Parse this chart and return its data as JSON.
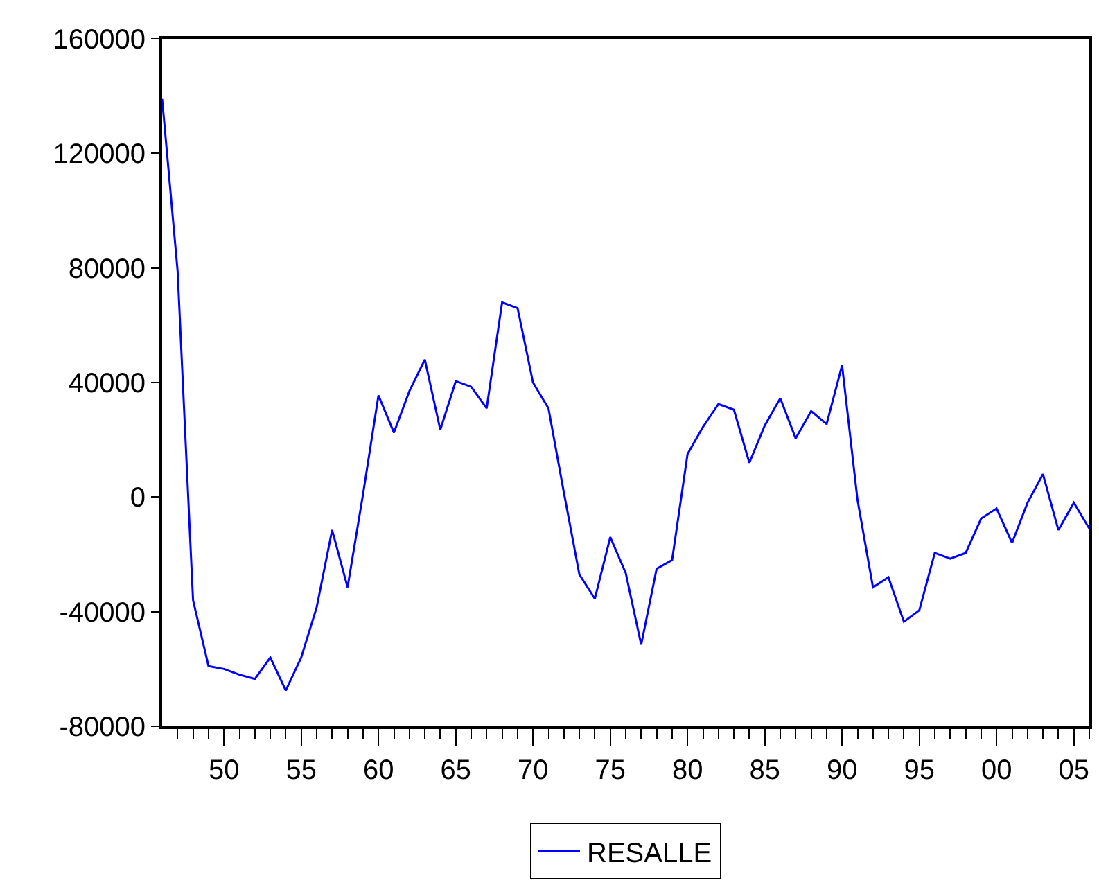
{
  "chart_data": {
    "type": "line",
    "x": [
      1946,
      1947,
      1948,
      1949,
      1950,
      1951,
      1952,
      1953,
      1954,
      1955,
      1956,
      1957,
      1958,
      1959,
      1960,
      1961,
      1962,
      1963,
      1964,
      1965,
      1966,
      1967,
      1968,
      1969,
      1970,
      1971,
      1972,
      1973,
      1974,
      1975,
      1976,
      1977,
      1978,
      1979,
      1980,
      1981,
      1982,
      1983,
      1984,
      1985,
      1986,
      1987,
      1988,
      1989,
      1990,
      1991,
      1992,
      1993,
      1994,
      1995,
      1996,
      1997,
      1998,
      1999,
      2000,
      2001,
      2002,
      2003,
      2004,
      2005,
      2006
    ],
    "series": [
      {
        "name": "RESALLE",
        "color": "#0000ff",
        "values": [
          139000,
          79000,
          -36000,
          -59000,
          -60000,
          -62000,
          -63500,
          -56000,
          -67500,
          -56000,
          -38500,
          -11500,
          -31500,
          1000,
          35500,
          22500,
          37000,
          48000,
          23500,
          40500,
          38500,
          31000,
          68000,
          66000,
          40000,
          31000,
          1500,
          -27000,
          -35500,
          -14000,
          -26500,
          -51500,
          -25000,
          -22000,
          15000,
          24500,
          32500,
          30500,
          12000,
          25000,
          34500,
          20500,
          30000,
          25500,
          46000,
          -1000,
          -31500,
          -28000,
          -43500,
          -39500,
          -19500,
          -21500,
          -19500,
          -7500,
          -4000,
          -16000,
          -2000,
          8000,
          -11500,
          -2000,
          -11000
        ]
      }
    ],
    "xlim": [
      1946,
      2006
    ],
    "xticks": [
      {
        "value": 1947,
        "label": null
      },
      {
        "value": 1948,
        "label": null
      },
      {
        "value": 1949,
        "label": null
      },
      {
        "value": 1950,
        "label": "50"
      },
      {
        "value": 1951,
        "label": null
      },
      {
        "value": 1952,
        "label": null
      },
      {
        "value": 1953,
        "label": null
      },
      {
        "value": 1954,
        "label": null
      },
      {
        "value": 1955,
        "label": "55"
      },
      {
        "value": 1956,
        "label": null
      },
      {
        "value": 1957,
        "label": null
      },
      {
        "value": 1958,
        "label": null
      },
      {
        "value": 1959,
        "label": null
      },
      {
        "value": 1960,
        "label": "60"
      },
      {
        "value": 1961,
        "label": null
      },
      {
        "value": 1962,
        "label": null
      },
      {
        "value": 1963,
        "label": null
      },
      {
        "value": 1964,
        "label": null
      },
      {
        "value": 1965,
        "label": "65"
      },
      {
        "value": 1966,
        "label": null
      },
      {
        "value": 1967,
        "label": null
      },
      {
        "value": 1968,
        "label": null
      },
      {
        "value": 1969,
        "label": null
      },
      {
        "value": 1970,
        "label": "70"
      },
      {
        "value": 1971,
        "label": null
      },
      {
        "value": 1972,
        "label": null
      },
      {
        "value": 1973,
        "label": null
      },
      {
        "value": 1974,
        "label": null
      },
      {
        "value": 1975,
        "label": "75"
      },
      {
        "value": 1976,
        "label": null
      },
      {
        "value": 1977,
        "label": null
      },
      {
        "value": 1978,
        "label": null
      },
      {
        "value": 1979,
        "label": null
      },
      {
        "value": 1980,
        "label": "80"
      },
      {
        "value": 1981,
        "label": null
      },
      {
        "value": 1982,
        "label": null
      },
      {
        "value": 1983,
        "label": null
      },
      {
        "value": 1984,
        "label": null
      },
      {
        "value": 1985,
        "label": "85"
      },
      {
        "value": 1986,
        "label": null
      },
      {
        "value": 1987,
        "label": null
      },
      {
        "value": 1988,
        "label": null
      },
      {
        "value": 1989,
        "label": null
      },
      {
        "value": 1990,
        "label": "90"
      },
      {
        "value": 1991,
        "label": null
      },
      {
        "value": 1992,
        "label": null
      },
      {
        "value": 1993,
        "label": null
      },
      {
        "value": 1994,
        "label": null
      },
      {
        "value": 1995,
        "label": "95"
      },
      {
        "value": 1996,
        "label": null
      },
      {
        "value": 1997,
        "label": null
      },
      {
        "value": 1998,
        "label": null
      },
      {
        "value": 1999,
        "label": null
      },
      {
        "value": 2000,
        "label": "00"
      },
      {
        "value": 2001,
        "label": null
      },
      {
        "value": 2002,
        "label": null
      },
      {
        "value": 2003,
        "label": null
      },
      {
        "value": 2004,
        "label": null
      },
      {
        "value": 2005,
        "label": "05"
      },
      {
        "value": 2006,
        "label": null
      }
    ],
    "ylim": [
      -80000,
      160000
    ],
    "yticks": [
      -80000,
      -40000,
      0,
      40000,
      80000,
      120000,
      160000
    ],
    "legend": "bottom",
    "marker": "none",
    "line_style": "solid"
  }
}
